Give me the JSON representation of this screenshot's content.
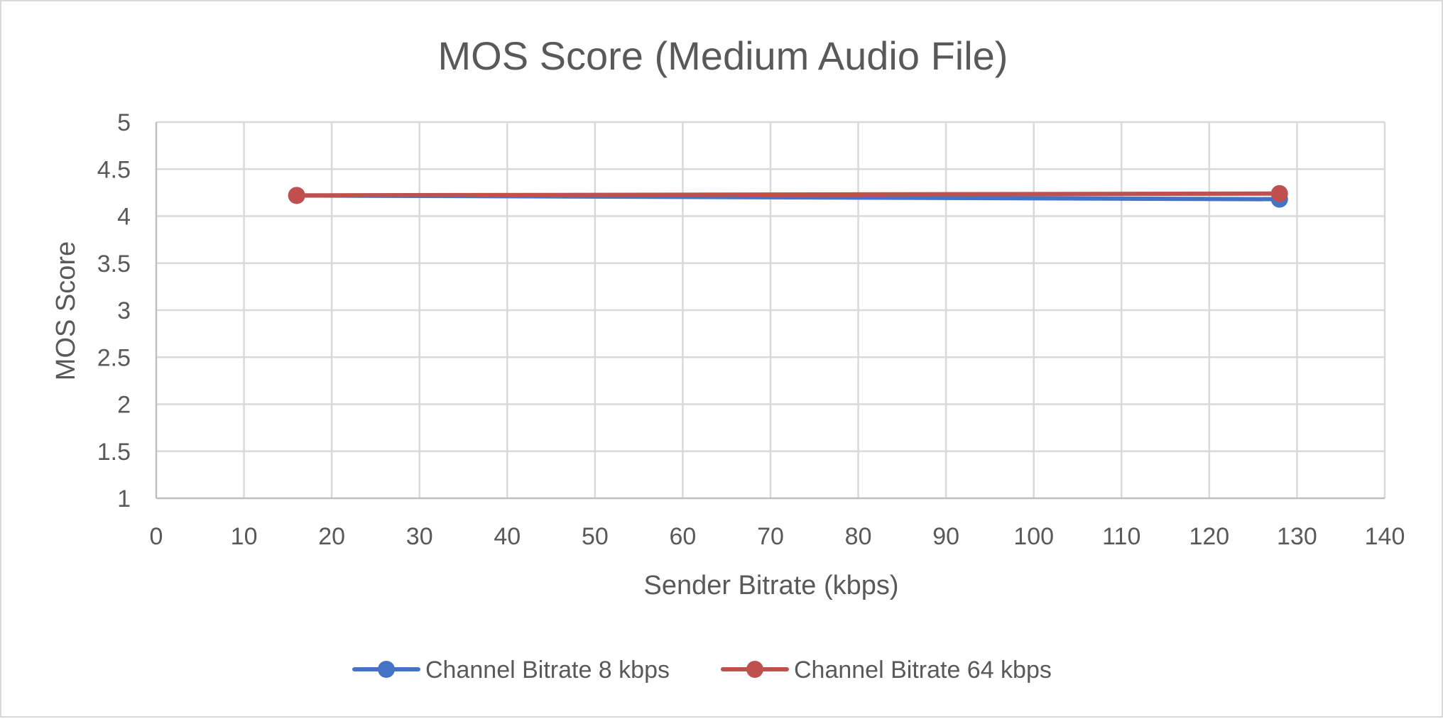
{
  "chart_data": {
    "type": "line",
    "title": "MOS Score (Medium Audio File)",
    "xlabel": "Sender Bitrate (kbps)",
    "ylabel": "MOS Score",
    "xlim": [
      0,
      140
    ],
    "ylim": [
      1,
      5
    ],
    "x_ticks": [
      "0",
      "10",
      "20",
      "30",
      "40",
      "50",
      "60",
      "70",
      "80",
      "90",
      "100",
      "110",
      "120",
      "130",
      "140"
    ],
    "y_ticks": [
      "1",
      "1.5",
      "2",
      "2.5",
      "3",
      "3.5",
      "4",
      "4.5",
      "5"
    ],
    "grid": true,
    "legend_position": "bottom",
    "series": [
      {
        "name": "Channel Bitrate 8 kbps",
        "color": "#4472c4",
        "x": [
          16,
          128
        ],
        "y": [
          4.22,
          4.18
        ]
      },
      {
        "name": "Channel Bitrate 64 kbps",
        "color": "#c0504d",
        "x": [
          16,
          128
        ],
        "y": [
          4.22,
          4.24
        ]
      }
    ]
  }
}
